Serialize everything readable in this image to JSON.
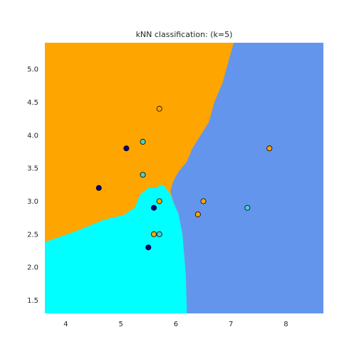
{
  "chart_data": {
    "type": "scatter",
    "title": "kNN classification: (k=5)",
    "xlabel": "",
    "ylabel": "",
    "xlim": [
      3.62,
      8.68
    ],
    "ylim": [
      1.3,
      5.4
    ],
    "x_ticks": [
      "4",
      "5",
      "6",
      "7",
      "8"
    ],
    "y_ticks": [
      "1.5",
      "2.0",
      "2.5",
      "3.0",
      "3.5",
      "4.0",
      "4.5",
      "5.0"
    ],
    "grid": false,
    "legend": "none",
    "region_colors": {
      "orange": "#ffa500",
      "cyan": "#00ffff",
      "cornflowerblue": "#6495ed"
    },
    "decision_regions": {
      "cornflowerblue_left_boundary": [
        [
          5.4,
          1.3
        ],
        [
          6.2,
          1.3
        ],
        [
          6.18,
          1.9
        ],
        [
          6.15,
          2.2
        ],
        [
          6.12,
          2.5
        ],
        [
          6.05,
          2.8
        ],
        [
          5.95,
          3.0
        ],
        [
          5.9,
          3.15
        ],
        [
          5.95,
          3.3
        ],
        [
          6.05,
          3.45
        ],
        [
          6.2,
          3.6
        ],
        [
          6.3,
          3.8
        ],
        [
          6.45,
          4.0
        ],
        [
          6.6,
          4.2
        ],
        [
          6.7,
          4.5
        ],
        [
          6.85,
          4.8
        ],
        [
          6.95,
          5.1
        ],
        [
          7.05,
          5.4
        ]
      ],
      "cyan_upper_boundary": [
        [
          3.62,
          2.38
        ],
        [
          4.2,
          2.55
        ],
        [
          4.7,
          2.72
        ],
        [
          5.05,
          2.79
        ],
        [
          5.25,
          2.9
        ],
        [
          5.35,
          3.1
        ],
        [
          5.5,
          3.2
        ],
        [
          5.65,
          3.2
        ],
        [
          5.72,
          3.25
        ],
        [
          5.8,
          3.22
        ],
        [
          5.9,
          3.1
        ],
        [
          5.95,
          3.0
        ]
      ]
    },
    "series": [
      {
        "color": "#ffa500",
        "points": [
          [
            5.7,
            4.4
          ],
          [
            7.7,
            3.8
          ],
          [
            5.7,
            3.0
          ],
          [
            6.5,
            3.0
          ],
          [
            6.4,
            2.8
          ],
          [
            5.6,
            2.5
          ]
        ]
      },
      {
        "color": "#00008b",
        "points": [
          [
            5.1,
            3.8
          ],
          [
            4.6,
            3.2
          ],
          [
            5.6,
            2.9
          ],
          [
            5.5,
            2.3
          ]
        ]
      },
      {
        "color": "#48d1cc",
        "points": [
          [
            5.4,
            3.9
          ],
          [
            5.4,
            3.4
          ],
          [
            7.3,
            2.9
          ],
          [
            5.7,
            2.5
          ]
        ]
      }
    ]
  }
}
